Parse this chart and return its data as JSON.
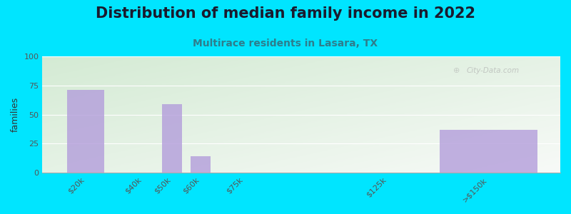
{
  "title": "Distribution of median family income in 2022",
  "subtitle": "Multirace residents in Lasara, TX",
  "ylabel": "families",
  "categories": [
    "$20k",
    "$40k",
    "$50k",
    "$60k",
    "$75k",
    "$125k",
    ">$150k"
  ],
  "x_positions": [
    20,
    40,
    50,
    60,
    75,
    125,
    160
  ],
  "bar_widths": [
    15,
    8,
    8,
    8,
    10,
    20,
    40
  ],
  "values": [
    71,
    0,
    59,
    14,
    0,
    0,
    37
  ],
  "bar_color": "#b39ddb",
  "bar_alpha": 0.8,
  "ylim": [
    0,
    100
  ],
  "yticks": [
    0,
    25,
    50,
    75,
    100
  ],
  "xlim": [
    5,
    185
  ],
  "bg_outer": "#00e5ff",
  "title_fontsize": 15,
  "subtitle_fontsize": 10,
  "title_color": "#1a1a2e",
  "subtitle_color": "#2e7d8c",
  "tick_label_color": "#555555",
  "watermark": "City-Data.com",
  "grid_color": "#ffffff",
  "plot_bg_left": "#cce8cc",
  "plot_bg_right": "#f8faf8"
}
